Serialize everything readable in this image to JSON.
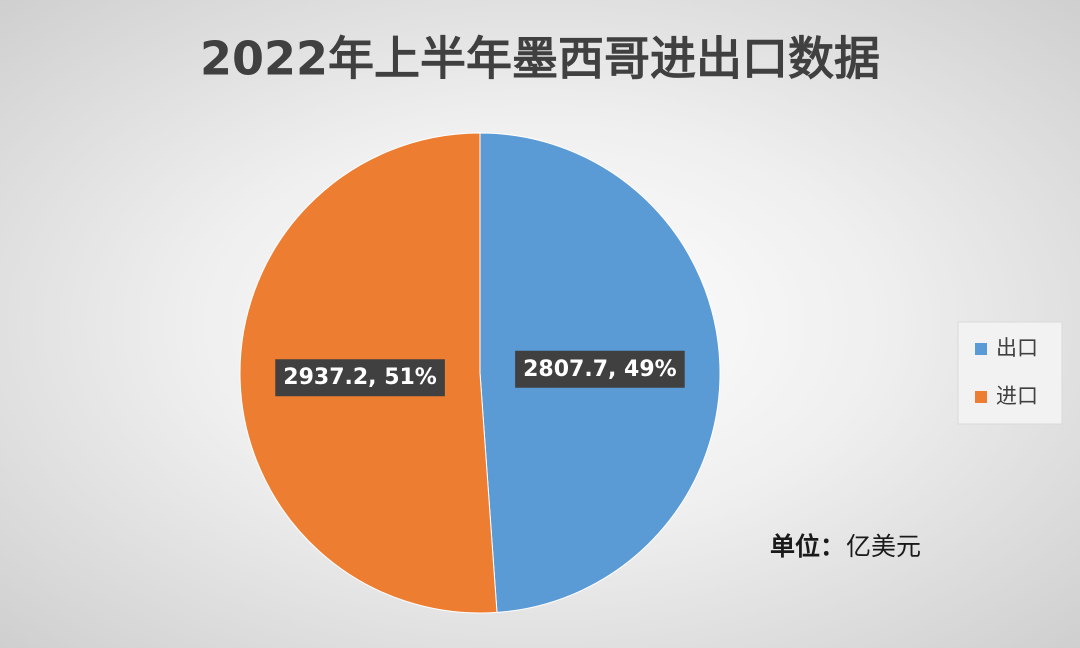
{
  "chart_data": {
    "type": "pie",
    "title": "2022年上半年墨西哥进出口数据",
    "categories": [
      "出口",
      "进口"
    ],
    "values": [
      2807.7,
      2937.2
    ],
    "value_labels": [
      "2807.7, 49%",
      "2937.2, 51%"
    ],
    "colors": [
      "#5b9bd5",
      "#ed7d31"
    ],
    "legend": "right",
    "unit_label": "单位：",
    "unit": "亿美元"
  }
}
